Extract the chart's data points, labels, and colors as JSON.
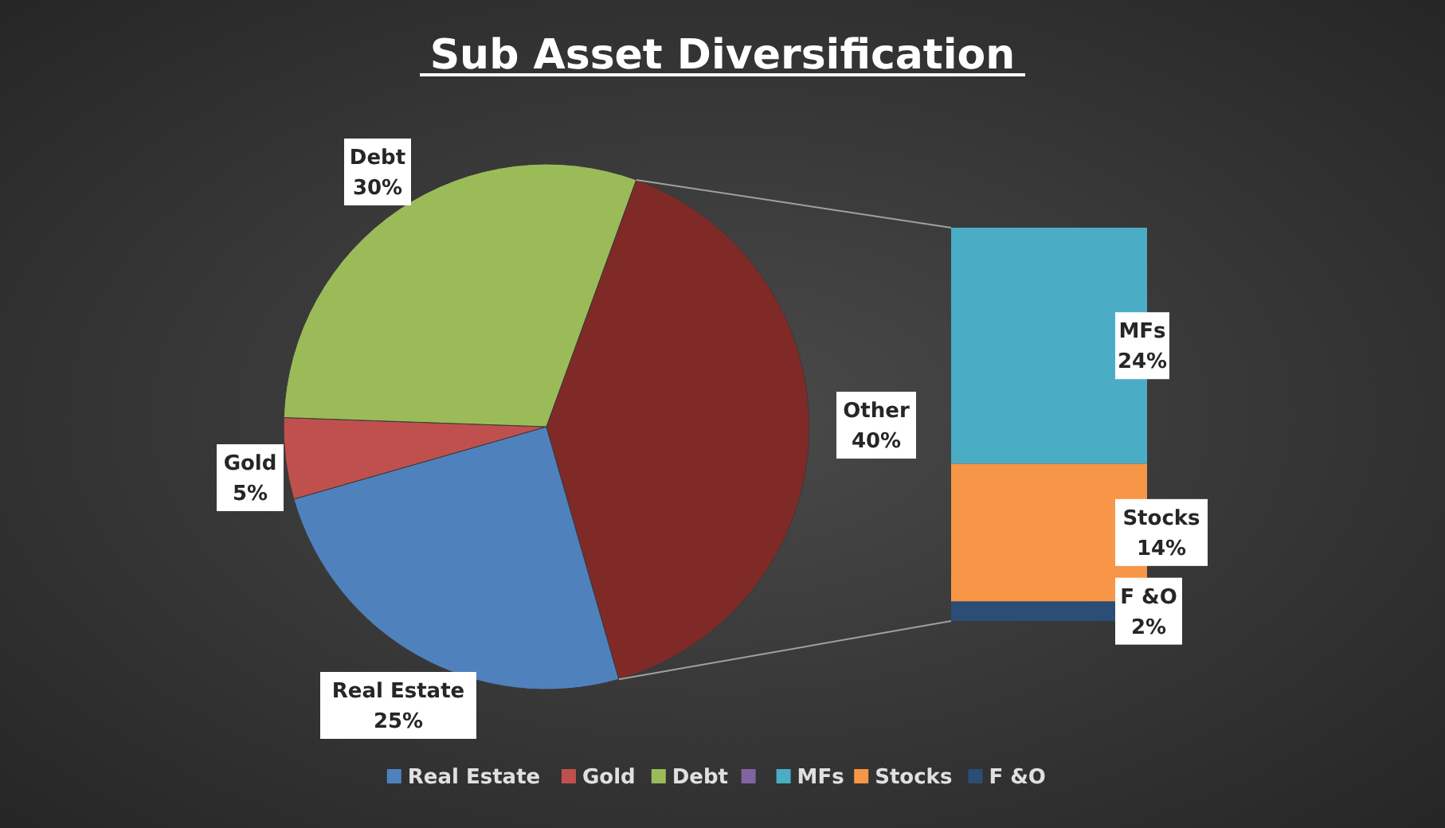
{
  "chart_data": [
    {
      "type": "pie",
      "title": "Sub Asset Diversification",
      "categories": [
        "Real Estate",
        "Gold",
        "Debt",
        "Other"
      ],
      "values": [
        25,
        5,
        30,
        40
      ],
      "colors": [
        "#4f81bd",
        "#c0504d",
        "#9bbb59",
        "#7f2a27"
      ],
      "value_labels": [
        "25%",
        "5%",
        "30%",
        "40%"
      ],
      "legend": "bottom"
    },
    {
      "type": "bar",
      "stacked": true,
      "categories": [
        null
      ],
      "legend": "bottom",
      "series": [
        {
          "name": "F &O",
          "color": "#2c4d75",
          "values": [
            2
          ],
          "value_labels": [
            "2%"
          ]
        },
        {
          "name": "Stocks",
          "color": "#f79646",
          "values": [
            14
          ],
          "value_labels": [
            "14%"
          ]
        },
        {
          "name": "MFs",
          "color": "#4bacc6",
          "values": [
            24
          ],
          "value_labels": [
            "24%"
          ]
        }
      ]
    }
  ]
}
